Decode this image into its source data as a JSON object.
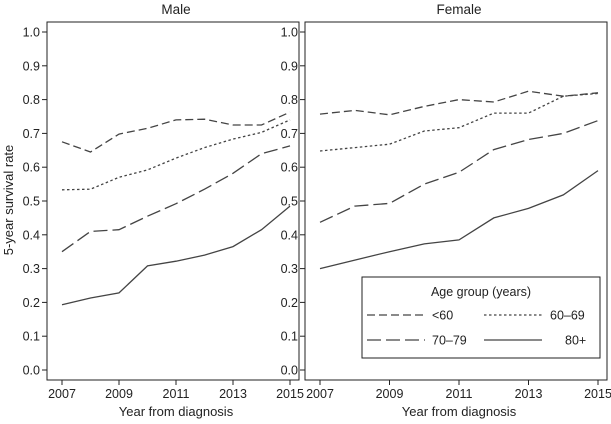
{
  "chart_data": {
    "type": "line",
    "ylabel": "5-year survival rate",
    "xlabel": "Year from diagnosis",
    "ylim": [
      0.0,
      1.0
    ],
    "xlim": [
      2007,
      2015
    ],
    "yticks": [
      "0.0",
      "0.1",
      "0.2",
      "0.3",
      "0.4",
      "0.5",
      "0.6",
      "0.7",
      "0.8",
      "0.9",
      "1.0"
    ],
    "xticks": [
      "2007",
      "2009",
      "2011",
      "2013",
      "2015"
    ],
    "legend": {
      "title": "Age group (years)",
      "position": "bottom-right of Female panel",
      "entries": [
        "<60",
        "60–69",
        "70–79",
        "80+"
      ]
    },
    "x": [
      2007,
      2008,
      2009,
      2010,
      2011,
      2012,
      2013,
      2014,
      2015
    ],
    "panels": [
      {
        "title": "Male",
        "series": [
          {
            "name": "<60",
            "style": "dash",
            "values": [
              0.675,
              0.645,
              0.698,
              0.715,
              0.74,
              0.742,
              0.725,
              0.725,
              0.763
            ]
          },
          {
            "name": "60–69",
            "style": "dot",
            "values": [
              0.533,
              0.535,
              0.57,
              0.592,
              0.627,
              0.658,
              0.683,
              0.703,
              0.74
            ]
          },
          {
            "name": "70–79",
            "style": "longdash",
            "values": [
              0.35,
              0.41,
              0.415,
              0.455,
              0.492,
              0.535,
              0.582,
              0.64,
              0.663
            ]
          },
          {
            "name": "80+",
            "style": "solid",
            "values": [
              0.193,
              0.213,
              0.228,
              0.308,
              0.322,
              0.34,
              0.365,
              0.415,
              0.485
            ]
          }
        ]
      },
      {
        "title": "Female",
        "series": [
          {
            "name": "<60",
            "style": "dash",
            "values": [
              0.757,
              0.768,
              0.755,
              0.78,
              0.8,
              0.793,
              0.825,
              0.81,
              0.82
            ]
          },
          {
            "name": "60–69",
            "style": "dot",
            "values": [
              0.648,
              0.658,
              0.668,
              0.707,
              0.717,
              0.76,
              0.76,
              0.81,
              0.818
            ]
          },
          {
            "name": "70–79",
            "style": "longdash",
            "values": [
              0.437,
              0.485,
              0.493,
              0.55,
              0.585,
              0.652,
              0.682,
              0.7,
              0.738
            ]
          },
          {
            "name": "80+",
            "style": "solid",
            "values": [
              0.3,
              0.325,
              0.35,
              0.373,
              0.385,
              0.45,
              0.478,
              0.518,
              0.59
            ]
          }
        ]
      }
    ]
  }
}
